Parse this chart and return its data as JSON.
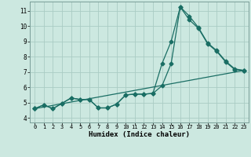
{
  "xlabel": "Humidex (Indice chaleur)",
  "bg_color": "#cce8e0",
  "grid_color": "#aaccc4",
  "line_color": "#1a6e64",
  "xlim": [
    -0.5,
    23.5
  ],
  "ylim": [
    3.7,
    11.6
  ],
  "yticks": [
    4,
    5,
    6,
    7,
    8,
    9,
    10,
    11
  ],
  "xticks": [
    0,
    1,
    2,
    3,
    4,
    5,
    6,
    7,
    8,
    9,
    10,
    11,
    12,
    13,
    14,
    15,
    16,
    17,
    18,
    19,
    20,
    21,
    22,
    23
  ],
  "series1_x": [
    0,
    1,
    2,
    3,
    4,
    5,
    6,
    7,
    8,
    9,
    10,
    11,
    12,
    13,
    14,
    15,
    16,
    17,
    18,
    19,
    20,
    21,
    22,
    23
  ],
  "series1_y": [
    4.6,
    4.85,
    4.6,
    4.95,
    5.3,
    5.2,
    5.2,
    4.65,
    4.65,
    4.9,
    5.5,
    5.55,
    5.55,
    5.6,
    7.55,
    9.0,
    11.25,
    10.65,
    9.9,
    8.9,
    8.4,
    7.7,
    7.2,
    7.1
  ],
  "series2_x": [
    0,
    1,
    2,
    3,
    4,
    5,
    6,
    7,
    8,
    9,
    10,
    11,
    12,
    13,
    14,
    15,
    16,
    17,
    18,
    19,
    20,
    21,
    22,
    23
  ],
  "series2_y": [
    4.6,
    4.85,
    4.6,
    4.95,
    5.3,
    5.2,
    5.2,
    4.65,
    4.65,
    4.9,
    5.5,
    5.55,
    5.55,
    5.6,
    6.1,
    7.55,
    11.25,
    10.4,
    9.85,
    8.85,
    8.35,
    7.65,
    7.15,
    7.1
  ],
  "series3_x": [
    0,
    23
  ],
  "series3_y": [
    4.6,
    7.1
  ]
}
